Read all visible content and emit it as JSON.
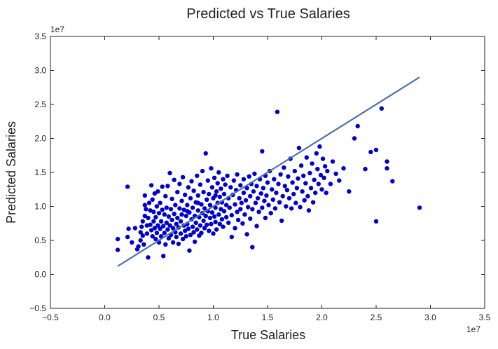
{
  "chart_data": {
    "type": "scatter",
    "title": "Predicted vs True Salaries",
    "xlabel": "True Salaries",
    "ylabel": "Predicted Salaries",
    "x_offset_label": "1e7",
    "y_offset_label": "1e7",
    "scale_unit": 10000000,
    "xlim": [
      -0.5,
      3.5
    ],
    "ylim": [
      -0.5,
      3.5
    ],
    "x_ticks": [
      "−0.5",
      "0.0",
      "0.5",
      "1.0",
      "1.5",
      "2.0",
      "2.5",
      "3.0",
      "3.5"
    ],
    "y_ticks": [
      "−0.5",
      "0.0",
      "0.5",
      "1.0",
      "1.5",
      "2.0",
      "2.5",
      "3.0",
      "3.5"
    ],
    "x_tick_values": [
      -0.5,
      0.0,
      0.5,
      1.0,
      1.5,
      2.0,
      2.5,
      3.0,
      3.5
    ],
    "y_tick_values": [
      -0.5,
      0.0,
      0.5,
      1.0,
      1.5,
      2.0,
      2.5,
      3.0,
      3.5
    ],
    "grid": false,
    "series": [
      {
        "kind": "points",
        "color": "#0000cc",
        "points": [
          [
            0.12,
            0.52
          ],
          [
            0.12,
            0.36
          ],
          [
            0.21,
            1.29
          ],
          [
            0.22,
            0.67
          ],
          [
            0.21,
            0.55
          ],
          [
            0.25,
            0.47
          ],
          [
            0.28,
            0.68
          ],
          [
            0.3,
            0.37
          ],
          [
            0.31,
            0.41
          ],
          [
            0.33,
            0.5
          ],
          [
            0.33,
            0.62
          ],
          [
            0.34,
            0.7
          ],
          [
            0.35,
            0.78
          ],
          [
            0.35,
            0.57
          ],
          [
            0.36,
            0.44
          ],
          [
            0.37,
            0.86
          ],
          [
            0.37,
            1.02
          ],
          [
            0.37,
            1.16
          ],
          [
            0.38,
            0.96
          ],
          [
            0.39,
            0.72
          ],
          [
            0.39,
            0.6
          ],
          [
            0.4,
            0.25
          ],
          [
            0.4,
            0.83
          ],
          [
            0.41,
            1.05
          ],
          [
            0.42,
            0.94
          ],
          [
            0.42,
            0.73
          ],
          [
            0.43,
            1.31
          ],
          [
            0.43,
            0.65
          ],
          [
            0.44,
            0.56
          ],
          [
            0.44,
            1.1
          ],
          [
            0.45,
            0.78
          ],
          [
            0.45,
            0.92
          ],
          [
            0.46,
            0.68
          ],
          [
            0.46,
            1.19
          ],
          [
            0.47,
            0.52
          ],
          [
            0.47,
            0.84
          ],
          [
            0.48,
            1.0
          ],
          [
            0.48,
            0.61
          ],
          [
            0.49,
            0.72
          ],
          [
            0.49,
            1.22
          ],
          [
            0.5,
            0.9
          ],
          [
            0.5,
            0.47
          ],
          [
            0.51,
            0.67
          ],
          [
            0.51,
            1.05
          ],
          [
            0.52,
            0.78
          ],
          [
            0.52,
            0.56
          ],
          [
            0.53,
            0.95
          ],
          [
            0.53,
            1.29
          ],
          [
            0.54,
            0.27
          ],
          [
            0.54,
            0.71
          ],
          [
            0.55,
            0.88
          ],
          [
            0.55,
            0.61
          ],
          [
            0.56,
            1.15
          ],
          [
            0.56,
            0.44
          ],
          [
            0.57,
            0.76
          ],
          [
            0.57,
            0.98
          ],
          [
            0.58,
            0.66
          ],
          [
            0.58,
            1.3
          ],
          [
            0.59,
            0.53
          ],
          [
            0.59,
            0.85
          ],
          [
            0.6,
            1.49
          ],
          [
            0.6,
            0.72
          ],
          [
            0.61,
            0.96
          ],
          [
            0.61,
            0.58
          ],
          [
            0.62,
            1.11
          ],
          [
            0.62,
            0.8
          ],
          [
            0.63,
            0.47
          ],
          [
            0.63,
            0.68
          ],
          [
            0.64,
            1.39
          ],
          [
            0.64,
            0.89
          ],
          [
            0.65,
            0.62
          ],
          [
            0.65,
            1.02
          ],
          [
            0.66,
            0.74
          ],
          [
            0.66,
            0.55
          ],
          [
            0.67,
            1.21
          ],
          [
            0.67,
            0.83
          ],
          [
            0.68,
            0.69
          ],
          [
            0.68,
            0.45
          ],
          [
            0.69,
            0.97
          ],
          [
            0.69,
            1.33
          ],
          [
            0.7,
            0.78
          ],
          [
            0.7,
            0.6
          ],
          [
            0.71,
            1.08
          ],
          [
            0.71,
            0.88
          ],
          [
            0.72,
            0.52
          ],
          [
            0.72,
            1.43
          ],
          [
            0.73,
            0.72
          ],
          [
            0.73,
            0.95
          ],
          [
            0.74,
            0.64
          ],
          [
            0.74,
            1.17
          ],
          [
            0.75,
            0.86
          ],
          [
            0.75,
            0.56
          ],
          [
            0.76,
            1.02
          ],
          [
            0.76,
            0.74
          ],
          [
            0.77,
            1.28
          ],
          [
            0.77,
            0.67
          ],
          [
            0.78,
            0.35
          ],
          [
            0.78,
            0.91
          ],
          [
            0.79,
            0.58
          ],
          [
            0.79,
            1.12
          ],
          [
            0.8,
            0.81
          ],
          [
            0.8,
            1.37
          ],
          [
            0.81,
            0.7
          ],
          [
            0.81,
            0.98
          ],
          [
            0.82,
            0.62
          ],
          [
            0.82,
            1.23
          ],
          [
            0.83,
            0.86
          ],
          [
            0.83,
            0.48
          ],
          [
            0.84,
            1.06
          ],
          [
            0.84,
            0.76
          ],
          [
            0.85,
            1.45
          ],
          [
            0.85,
            0.66
          ],
          [
            0.86,
            0.94
          ],
          [
            0.86,
            1.16
          ],
          [
            0.87,
            0.57
          ],
          [
            0.87,
            0.84
          ],
          [
            0.88,
            1.32
          ],
          [
            0.88,
            0.72
          ],
          [
            0.89,
            1.03
          ],
          [
            0.89,
            0.61
          ],
          [
            0.9,
            0.9
          ],
          [
            0.9,
            1.52
          ],
          [
            0.91,
            0.79
          ],
          [
            0.91,
            1.21
          ],
          [
            0.92,
            0.68
          ],
          [
            0.92,
            0.97
          ],
          [
            0.93,
            1.78
          ],
          [
            0.93,
            0.86
          ],
          [
            0.94,
            1.1
          ],
          [
            0.94,
            0.73
          ],
          [
            0.95,
            1.38
          ],
          [
            0.95,
            0.93
          ],
          [
            0.96,
            0.64
          ],
          [
            0.96,
            1.18
          ],
          [
            0.97,
            0.83
          ],
          [
            0.97,
            1.02
          ],
          [
            0.98,
            1.56
          ],
          [
            0.98,
            0.74
          ],
          [
            0.99,
            1.28
          ],
          [
            0.99,
            0.91
          ],
          [
            1.0,
            0.6
          ],
          [
            1.0,
            1.12
          ],
          [
            1.01,
            0.85
          ],
          [
            1.01,
            1.42
          ],
          [
            1.02,
            0.98
          ],
          [
            1.02,
            0.77
          ],
          [
            1.03,
            1.22
          ],
          [
            1.03,
            0.66
          ],
          [
            1.04,
            1.05
          ],
          [
            1.04,
            1.34
          ],
          [
            1.05,
            0.88
          ],
          [
            1.05,
            1.5
          ],
          [
            1.06,
            0.74
          ],
          [
            1.06,
            1.14
          ],
          [
            1.07,
            0.96
          ],
          [
            1.07,
            1.26
          ],
          [
            1.08,
            0.81
          ],
          [
            1.08,
            1.06
          ],
          [
            1.09,
            1.4
          ],
          [
            1.09,
            0.7
          ],
          [
            1.1,
            0.93
          ],
          [
            1.1,
            1.18
          ],
          [
            1.11,
            1.32
          ],
          [
            1.12,
            0.84
          ],
          [
            1.12,
            1.02
          ],
          [
            1.13,
            1.45
          ],
          [
            1.14,
            0.76
          ],
          [
            1.14,
            1.12
          ],
          [
            1.15,
            0.98
          ],
          [
            1.16,
            1.28
          ],
          [
            1.17,
            0.87
          ],
          [
            1.17,
            0.55
          ],
          [
            1.18,
            1.17
          ],
          [
            1.19,
            1.38
          ],
          [
            1.2,
            1.03
          ],
          [
            1.2,
            0.68
          ],
          [
            1.21,
            1.24
          ],
          [
            1.22,
            0.92
          ],
          [
            1.22,
            1.47
          ],
          [
            1.23,
            0.8
          ],
          [
            1.24,
            1.12
          ],
          [
            1.25,
            1.31
          ],
          [
            1.25,
            0.96
          ],
          [
            1.26,
            1.05
          ],
          [
            1.27,
            0.75
          ],
          [
            1.28,
            1.2
          ],
          [
            1.28,
            1.4
          ],
          [
            1.29,
            0.88
          ],
          [
            1.3,
            1.09
          ],
          [
            1.31,
            0.59
          ],
          [
            1.31,
            1.27
          ],
          [
            1.32,
            0.99
          ],
          [
            1.33,
            1.44
          ],
          [
            1.34,
            0.82
          ],
          [
            1.34,
            1.15
          ],
          [
            1.35,
            1.33
          ],
          [
            1.36,
            0.4
          ],
          [
            1.36,
            0.96
          ],
          [
            1.37,
            1.22
          ],
          [
            1.38,
            1.48
          ],
          [
            1.39,
            1.05
          ],
          [
            1.4,
            0.71
          ],
          [
            1.4,
            1.3
          ],
          [
            1.41,
            1.12
          ],
          [
            1.42,
            0.92
          ],
          [
            1.43,
            1.4
          ],
          [
            1.44,
            1.19
          ],
          [
            1.45,
            1.81
          ],
          [
            1.45,
            0.98
          ],
          [
            1.46,
            1.27
          ],
          [
            1.47,
            1.08
          ],
          [
            1.48,
            1.45
          ],
          [
            1.48,
            0.83
          ],
          [
            1.49,
            1.16
          ],
          [
            1.5,
            1.35
          ],
          [
            1.51,
            1.02
          ],
          [
            1.52,
            1.52
          ],
          [
            1.53,
            0.9
          ],
          [
            1.54,
            1.25
          ],
          [
            1.55,
            1.1
          ],
          [
            1.56,
            1.4
          ],
          [
            1.57,
            0.97
          ],
          [
            1.58,
            1.2
          ],
          [
            1.59,
            2.39
          ],
          [
            1.6,
            1.33
          ],
          [
            1.61,
            1.06
          ],
          [
            1.62,
            1.47
          ],
          [
            1.63,
            0.79
          ],
          [
            1.64,
            1.15
          ],
          [
            1.65,
            1.57
          ],
          [
            1.66,
            1.3
          ],
          [
            1.67,
            1.0
          ],
          [
            1.68,
            1.24
          ],
          [
            1.69,
            1.44
          ],
          [
            1.7,
            1.12
          ],
          [
            1.71,
            1.7
          ],
          [
            1.72,
            0.97
          ],
          [
            1.73,
            1.35
          ],
          [
            1.74,
            1.18
          ],
          [
            1.75,
            1.52
          ],
          [
            1.76,
            1.05
          ],
          [
            1.77,
            1.27
          ],
          [
            1.78,
            1.41
          ],
          [
            1.79,
            1.86
          ],
          [
            1.8,
            0.99
          ],
          [
            1.81,
            1.6
          ],
          [
            1.82,
            1.22
          ],
          [
            1.83,
            1.45
          ],
          [
            1.84,
            1.09
          ],
          [
            1.85,
            1.34
          ],
          [
            1.86,
            1.72
          ],
          [
            1.87,
            1.15
          ],
          [
            1.88,
            0.94
          ],
          [
            1.89,
            1.49
          ],
          [
            1.9,
            1.27
          ],
          [
            1.91,
            1.63
          ],
          [
            1.92,
            1.06
          ],
          [
            1.93,
            1.39
          ],
          [
            1.94,
            1.2
          ],
          [
            1.95,
            1.78
          ],
          [
            1.96,
            1.55
          ],
          [
            1.97,
            1.33
          ],
          [
            1.98,
            1.88
          ],
          [
            1.99,
            1.46
          ],
          [
            2.0,
            1.25
          ],
          [
            2.01,
            1.7
          ],
          [
            2.02,
            1.42
          ],
          [
            2.03,
            1.59
          ],
          [
            2.04,
            1.2
          ],
          [
            2.05,
            1.52
          ],
          [
            2.08,
            1.33
          ],
          [
            2.1,
            1.66
          ],
          [
            2.13,
            1.48
          ],
          [
            2.16,
            1.38
          ],
          [
            2.2,
            1.56
          ],
          [
            2.25,
            1.22
          ],
          [
            2.3,
            2.0
          ],
          [
            2.33,
            2.18
          ],
          [
            2.4,
            1.55
          ],
          [
            2.45,
            1.8
          ],
          [
            2.5,
            1.83
          ],
          [
            2.55,
            2.44
          ],
          [
            2.6,
            1.66
          ],
          [
            2.6,
            1.56
          ],
          [
            2.5,
            0.78
          ],
          [
            2.65,
            1.37
          ],
          [
            2.9,
            0.98
          ],
          [
            1.02,
            1.16
          ],
          [
            0.86,
            1.05
          ],
          [
            0.76,
            0.93
          ]
        ]
      },
      {
        "kind": "fit-line",
        "color": "#4c72b0",
        "points": [
          [
            0.12,
            0.12
          ],
          [
            2.9,
            2.9
          ]
        ]
      }
    ]
  }
}
